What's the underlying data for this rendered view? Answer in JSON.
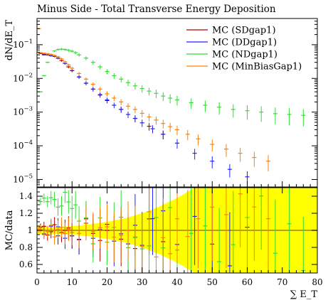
{
  "chart_data": {
    "type": "scatter",
    "title": "Minus Side - Total Transverse Energy Deposition",
    "main": {
      "ylabel": "dN/dE_T",
      "yscale": "log",
      "ylim": [
        6e-06,
        0.6
      ],
      "y_ticks": [
        {
          "v": 1e-05,
          "m": "10",
          "e": "−5"
        },
        {
          "v": 0.0001,
          "m": "10",
          "e": "−4"
        },
        {
          "v": 0.001,
          "m": "10",
          "e": "−3"
        },
        {
          "v": 0.01,
          "m": "10",
          "e": "−2"
        },
        {
          "v": 0.1,
          "m": "10",
          "e": "−1"
        }
      ]
    },
    "ratio": {
      "ylabel": "MC/data",
      "ylim": [
        0.5,
        1.5
      ],
      "y_ticks": [
        "0.6",
        "0.8",
        "1",
        "1.2",
        "1.4"
      ]
    },
    "x": {
      "label": "∑ E_T",
      "xlim": [
        0,
        80
      ],
      "ticks": [
        "0",
        "10",
        "20",
        "30",
        "40",
        "50",
        "60",
        "70",
        "80"
      ]
    },
    "legend_position": "top-right",
    "series": [
      {
        "name": "MC (SDgap1)",
        "color": "#b00000",
        "x": [
          1,
          2,
          3,
          4,
          5,
          6,
          7,
          8,
          9,
          10,
          12,
          14,
          16,
          18,
          20,
          24,
          28,
          32,
          36
        ],
        "y": [
          0.055,
          0.052,
          0.05,
          0.048,
          0.045,
          0.04,
          0.034,
          0.028,
          0.022,
          0.017,
          0.011,
          0.0072,
          0.0048,
          0.0032,
          0.0022,
          0.0012,
          0.00065,
          0.00038,
          0.00022
        ]
      },
      {
        "name": "MC (DDgap1)",
        "color": "#2020ff",
        "x": [
          2,
          4,
          6,
          8,
          10,
          12,
          14,
          16,
          18,
          20,
          22,
          24,
          26,
          28,
          30,
          33,
          36,
          40,
          45,
          50,
          55,
          60
        ],
        "y": [
          0.05,
          0.047,
          0.04,
          0.028,
          0.017,
          0.011,
          0.0072,
          0.0048,
          0.0033,
          0.0023,
          0.0016,
          0.0012,
          0.00085,
          0.00065,
          0.00048,
          0.00032,
          0.00022,
          0.00012,
          6e-05,
          3.5e-05,
          2e-05,
          1.2e-05
        ]
      },
      {
        "name": "MC (NDgap1)",
        "color": "#30dd30",
        "x": [
          1,
          2,
          3,
          4,
          5,
          6,
          7,
          8,
          9,
          10,
          11,
          12,
          14,
          16,
          18,
          20,
          22,
          24,
          26,
          28,
          30,
          32,
          34,
          36,
          38,
          40,
          44,
          48,
          52,
          56,
          60,
          64,
          68,
          72,
          76
        ],
        "y": [
          0.004,
          0.012,
          0.03,
          0.05,
          0.065,
          0.072,
          0.074,
          0.072,
          0.068,
          0.064,
          0.058,
          0.05,
          0.04,
          0.03,
          0.022,
          0.016,
          0.012,
          0.0095,
          0.0075,
          0.006,
          0.005,
          0.0042,
          0.0036,
          0.003,
          0.0026,
          0.0023,
          0.0019,
          0.0016,
          0.0014,
          0.0012,
          0.0011,
          0.001,
          0.0009,
          0.00085,
          0.0008
        ]
      },
      {
        "name": "MC (MinBiasGap1)",
        "color": "#ff8000",
        "x": [
          0.5,
          1,
          2,
          3,
          4,
          5,
          6,
          7,
          8,
          9,
          10,
          12,
          14,
          16,
          18,
          20,
          22,
          24,
          26,
          28,
          30,
          32,
          34,
          36,
          38,
          40,
          43,
          46,
          50,
          54,
          58,
          62,
          66
        ],
        "y": [
          0.3,
          0.058,
          0.056,
          0.054,
          0.052,
          0.048,
          0.044,
          0.038,
          0.031,
          0.025,
          0.02,
          0.014,
          0.0095,
          0.0067,
          0.0048,
          0.0035,
          0.0026,
          0.002,
          0.0015,
          0.0012,
          0.00092,
          0.00072,
          0.00058,
          0.00046,
          0.00037,
          0.0003,
          0.00022,
          0.00016,
          0.00011,
          8e-05,
          6e-05,
          4.5e-05,
          3.5e-05
        ]
      }
    ],
    "data_band": {
      "color": "#ffff00",
      "x": [
        0,
        5,
        10,
        15,
        20,
        25,
        30,
        35,
        40,
        45,
        50,
        55,
        60,
        65,
        70,
        75,
        80
      ],
      "half_width": [
        0.05,
        0.04,
        0.05,
        0.07,
        0.1,
        0.14,
        0.2,
        0.28,
        0.38,
        0.5,
        0.5,
        0.5,
        0.5,
        0.5,
        0.5,
        0.5,
        0.5
      ]
    },
    "reference_line": {
      "y": 1,
      "color": "#a08000"
    }
  }
}
